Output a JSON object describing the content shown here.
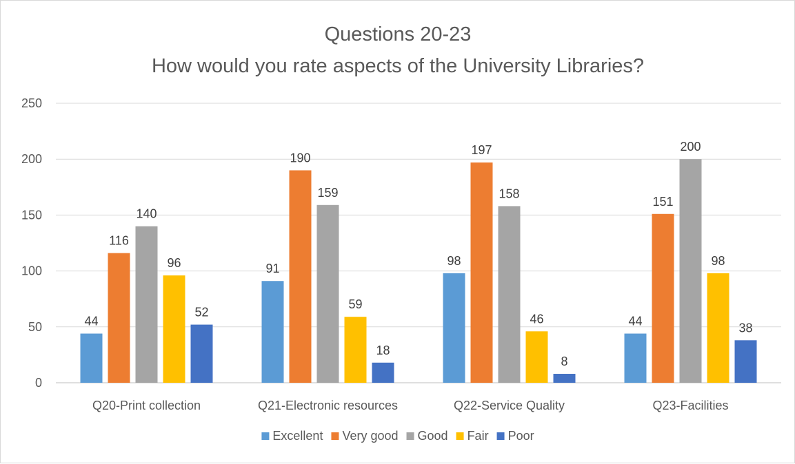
{
  "chart_data": {
    "type": "bar",
    "title": "Questions 20-23",
    "subtitle": "How would you rate aspects of the University Libraries?",
    "xlabel": "",
    "ylabel": "",
    "ylim": [
      0,
      250
    ],
    "yticks": [
      0,
      50,
      100,
      150,
      200,
      250
    ],
    "grid": true,
    "legend_position": "bottom",
    "categories": [
      "Q20-Print collection",
      "Q21-Electronic resources",
      "Q22-Service Quality",
      "Q23-Facilities"
    ],
    "series": [
      {
        "name": "Excellent",
        "color": "#5b9bd5",
        "values": [
          44,
          91,
          98,
          44
        ]
      },
      {
        "name": "Very good",
        "color": "#ed7d31",
        "values": [
          116,
          190,
          197,
          151
        ]
      },
      {
        "name": "Good",
        "color": "#a5a5a5",
        "values": [
          140,
          159,
          158,
          200
        ]
      },
      {
        "name": "Fair",
        "color": "#ffc000",
        "values": [
          96,
          59,
          46,
          98
        ]
      },
      {
        "name": "Poor",
        "color": "#4472c4",
        "values": [
          52,
          18,
          8,
          38
        ]
      }
    ]
  }
}
